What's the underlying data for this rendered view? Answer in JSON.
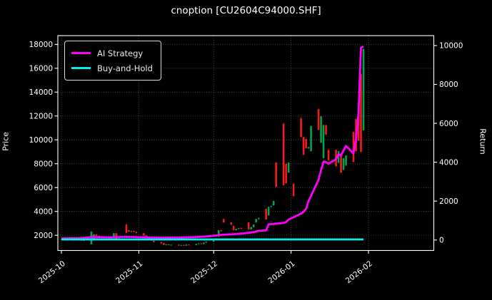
{
  "title": "cnoption [CU2604C94000.SHF]",
  "legend": {
    "items": [
      {
        "label": "AI Strategy",
        "color": "#ff00ff"
      },
      {
        "label": "Buy-and-Hold",
        "color": "#00f0f0"
      }
    ]
  },
  "axes": {
    "left": {
      "label": "Price",
      "ticks": [
        2000,
        4000,
        6000,
        8000,
        10000,
        12000,
        14000,
        16000,
        18000
      ]
    },
    "right": {
      "label": "Return",
      "ticks": [
        0,
        2000,
        4000,
        6000,
        8000,
        10000
      ]
    },
    "x": {
      "tick_dates": [
        "2025-10-01",
        "2025-11-01",
        "2025-12-01",
        "2026-01-01",
        "2026-02-01"
      ],
      "tick_labels": [
        "2025-10",
        "2025-11",
        "2025-12",
        "2026-01",
        "2026-02"
      ]
    }
  },
  "colors": {
    "background": "#000000",
    "text": "#ffffff",
    "grid": "#ffffff",
    "spine": "#ffffff",
    "candle_up": "#00a44c",
    "candle_down": "#f31c1c",
    "ai_strategy": "#ff00ff",
    "buy_and_hold": "#00f0f0"
  },
  "chart_data": {
    "type": "candlestick",
    "title": "cnoption [CU2604C94000.SHF]",
    "xlabel": "",
    "ylabel_left": "Price",
    "ylabel_right": "Return",
    "x_range": [
      "2025-09-30",
      "2026-02-27"
    ],
    "price_ylim": [
      730,
      18700
    ],
    "return_ylim": [
      -480,
      10530
    ],
    "grid": "dotted",
    "legend_position": "upper-left",
    "candles_ohlc_format": [
      "date",
      "open",
      "high",
      "low",
      "close"
    ],
    "candles": [
      [
        "2025-10-01",
        1680,
        1700,
        1620,
        1630
      ],
      [
        "2025-10-02",
        1630,
        1660,
        1590,
        1650
      ],
      [
        "2025-10-03",
        1650,
        1680,
        1610,
        1620
      ],
      [
        "2025-10-06",
        1620,
        1640,
        1560,
        1580
      ],
      [
        "2025-10-07",
        1580,
        1650,
        1570,
        1640
      ],
      [
        "2025-10-08",
        1640,
        1670,
        1600,
        1610
      ],
      [
        "2025-10-09",
        1610,
        1630,
        1550,
        1570
      ],
      [
        "2025-10-10",
        1570,
        1620,
        1540,
        1600
      ],
      [
        "2025-10-13",
        1250,
        2350,
        1220,
        2300
      ],
      [
        "2025-10-14",
        1680,
        2120,
        1650,
        2080
      ],
      [
        "2025-10-15",
        2080,
        2100,
        1900,
        1950
      ],
      [
        "2025-10-16",
        1950,
        1980,
        1820,
        1850
      ],
      [
        "2025-10-17",
        1850,
        1900,
        1780,
        1880
      ],
      [
        "2025-10-20",
        1880,
        1920,
        1800,
        1820
      ],
      [
        "2025-10-21",
        1820,
        1860,
        1740,
        1770
      ],
      [
        "2025-10-22",
        1770,
        2200,
        1750,
        2170
      ],
      [
        "2025-10-23",
        2180,
        2200,
        1690,
        1720
      ],
      [
        "2025-10-24",
        1720,
        1780,
        1650,
        1700
      ],
      [
        "2025-10-27",
        2900,
        2950,
        2180,
        2200
      ],
      [
        "2025-10-28",
        2420,
        2450,
        2280,
        2300
      ],
      [
        "2025-10-29",
        2300,
        2380,
        2250,
        2350
      ],
      [
        "2025-10-30",
        2350,
        2400,
        2260,
        2280
      ],
      [
        "2025-10-31",
        2280,
        2300,
        2150,
        2180
      ],
      [
        "2025-11-03",
        2180,
        2200,
        1950,
        1980
      ],
      [
        "2025-11-04",
        1980,
        2000,
        1800,
        1830
      ],
      [
        "2025-11-05",
        1830,
        1850,
        1650,
        1680
      ],
      [
        "2025-11-06",
        1680,
        1700,
        1520,
        1550
      ],
      [
        "2025-11-07",
        1550,
        1580,
        1400,
        1430
      ],
      [
        "2025-11-10",
        1430,
        1460,
        1300,
        1330
      ],
      [
        "2025-11-11",
        1350,
        1380,
        1170,
        1190
      ],
      [
        "2025-11-12",
        1190,
        1260,
        1150,
        1240
      ],
      [
        "2025-11-13",
        1240,
        1270,
        1160,
        1180
      ],
      [
        "2025-11-14",
        1180,
        1230,
        1130,
        1210
      ],
      [
        "2025-11-17",
        1210,
        1240,
        1120,
        1140
      ],
      [
        "2025-11-18",
        1140,
        1200,
        1100,
        1190
      ],
      [
        "2025-11-19",
        1190,
        1220,
        1110,
        1130
      ],
      [
        "2025-11-20",
        1130,
        1230,
        1120,
        1220
      ],
      [
        "2025-11-21",
        1220,
        1260,
        1150,
        1170
      ],
      [
        "2025-11-24",
        1170,
        1290,
        1160,
        1280
      ],
      [
        "2025-11-25",
        1280,
        1340,
        1220,
        1330
      ],
      [
        "2025-11-26",
        1330,
        1380,
        1250,
        1270
      ],
      [
        "2025-11-27",
        1270,
        1400,
        1260,
        1390
      ],
      [
        "2025-11-28",
        1390,
        1480,
        1340,
        1460
      ],
      [
        "2025-12-01",
        1460,
        1620,
        1440,
        1600
      ],
      [
        "2025-12-02",
        1600,
        1750,
        1580,
        1730
      ],
      [
        "2025-12-03",
        1880,
        2450,
        1860,
        2420
      ],
      [
        "2025-12-04",
        2420,
        2480,
        2300,
        2350
      ],
      [
        "2025-12-05",
        3370,
        3400,
        3060,
        3080
      ],
      [
        "2025-12-08",
        3080,
        3100,
        2850,
        2900
      ],
      [
        "2025-12-09",
        2780,
        2800,
        2400,
        2430
      ],
      [
        "2025-12-10",
        2430,
        2560,
        2400,
        2540
      ],
      [
        "2025-12-11",
        2540,
        2620,
        2480,
        2600
      ],
      [
        "2025-12-12",
        2600,
        2680,
        2520,
        2550
      ],
      [
        "2025-12-15",
        3080,
        3100,
        2470,
        2490
      ],
      [
        "2025-12-16",
        2490,
        2700,
        2460,
        2680
      ],
      [
        "2025-12-17",
        2680,
        2920,
        2650,
        2900
      ],
      [
        "2025-12-18",
        3080,
        3380,
        3060,
        3370
      ],
      [
        "2025-12-19",
        3370,
        3500,
        3280,
        3450
      ],
      [
        "2025-12-22",
        4210,
        4260,
        3300,
        3320
      ],
      [
        "2025-12-23",
        3670,
        4400,
        3650,
        4390
      ],
      [
        "2025-12-24",
        4390,
        4500,
        4300,
        4450
      ],
      [
        "2025-12-25",
        4510,
        4880,
        4490,
        4870
      ],
      [
        "2025-12-26",
        8090,
        8150,
        6020,
        6060
      ],
      [
        "2025-12-29",
        11350,
        11450,
        6180,
        6200
      ],
      [
        "2025-12-30",
        7970,
        8000,
        6330,
        6360
      ],
      [
        "2025-12-31",
        7250,
        8120,
        7220,
        8090
      ],
      [
        "2026-01-02",
        6300,
        6350,
        5250,
        5300
      ],
      [
        "2026-01-05",
        11800,
        11900,
        10200,
        10240
      ],
      [
        "2026-01-06",
        10240,
        10280,
        8700,
        8750
      ],
      [
        "2026-01-07",
        10060,
        10100,
        9250,
        9290
      ],
      [
        "2026-01-08",
        9290,
        9420,
        9230,
        9400
      ],
      [
        "2026-01-09",
        9060,
        11200,
        9030,
        11150
      ],
      [
        "2026-01-12",
        12570,
        12620,
        10800,
        10840
      ],
      [
        "2026-01-13",
        9760,
        12000,
        9740,
        11970
      ],
      [
        "2026-01-14",
        8460,
        11280,
        8440,
        11240
      ],
      [
        "2026-01-15",
        11240,
        11260,
        10400,
        10450
      ],
      [
        "2026-01-16",
        9160,
        9200,
        8250,
        8270
      ],
      [
        "2026-01-19",
        9160,
        9200,
        7760,
        7790
      ],
      [
        "2026-01-20",
        8090,
        9080,
        8060,
        9050
      ],
      [
        "2026-01-21",
        8870,
        8900,
        7220,
        7250
      ],
      [
        "2026-01-22",
        7490,
        8470,
        7460,
        8450
      ],
      [
        "2026-01-23",
        7850,
        8700,
        7830,
        8690
      ],
      [
        "2026-01-26",
        10660,
        10700,
        8120,
        8150
      ],
      [
        "2026-01-27",
        11750,
        11800,
        9020,
        9050
      ],
      [
        "2026-01-28",
        12450,
        12500,
        9900,
        9940
      ],
      [
        "2026-01-29",
        15500,
        15600,
        8900,
        9000
      ],
      [
        "2026-01-30",
        10800,
        17700,
        10750,
        17600
      ]
    ],
    "series": [
      {
        "name": "AI Strategy",
        "axis": "return",
        "color": "#ff00ff",
        "points": [
          [
            "2025-10-01",
            80
          ],
          [
            "2025-10-09",
            100
          ],
          [
            "2025-10-13",
            150
          ],
          [
            "2025-10-20",
            140
          ],
          [
            "2025-10-27",
            160
          ],
          [
            "2025-11-03",
            140
          ],
          [
            "2025-11-10",
            120
          ],
          [
            "2025-11-17",
            130
          ],
          [
            "2025-11-24",
            150
          ],
          [
            "2025-11-28",
            180
          ],
          [
            "2025-12-01",
            220
          ],
          [
            "2025-12-03",
            250
          ],
          [
            "2025-12-05",
            270
          ],
          [
            "2025-12-09",
            300
          ],
          [
            "2025-12-12",
            330
          ],
          [
            "2025-12-15",
            370
          ],
          [
            "2025-12-17",
            400
          ],
          [
            "2025-12-18",
            440
          ],
          [
            "2025-12-19",
            470
          ],
          [
            "2025-12-22",
            500
          ],
          [
            "2025-12-23",
            810
          ],
          [
            "2025-12-24",
            810
          ],
          [
            "2025-12-25",
            820
          ],
          [
            "2025-12-26",
            840
          ],
          [
            "2025-12-29",
            880
          ],
          [
            "2025-12-30",
            920
          ],
          [
            "2025-12-31",
            1050
          ],
          [
            "2026-01-02",
            1170
          ],
          [
            "2026-01-05",
            1360
          ],
          [
            "2026-01-06",
            1450
          ],
          [
            "2026-01-07",
            1600
          ],
          [
            "2026-01-08",
            2000
          ],
          [
            "2026-01-09",
            2270
          ],
          [
            "2026-01-12",
            3100
          ],
          [
            "2026-01-13",
            3600
          ],
          [
            "2026-01-14",
            4030
          ],
          [
            "2026-01-15",
            4000
          ],
          [
            "2026-01-16",
            3920
          ],
          [
            "2026-01-19",
            4150
          ],
          [
            "2026-01-20",
            4400
          ],
          [
            "2026-01-21",
            4350
          ],
          [
            "2026-01-22",
            4600
          ],
          [
            "2026-01-23",
            4840
          ],
          [
            "2026-01-26",
            4450
          ],
          [
            "2026-01-27",
            5200
          ],
          [
            "2026-01-28",
            6480
          ],
          [
            "2026-01-29",
            9890
          ],
          [
            "2026-01-30",
            9950
          ]
        ]
      },
      {
        "name": "Buy-and-Hold",
        "axis": "return",
        "color": "#00f0f0",
        "points": [
          [
            "2025-10-01",
            30
          ],
          [
            "2026-01-30",
            30
          ]
        ]
      }
    ]
  }
}
